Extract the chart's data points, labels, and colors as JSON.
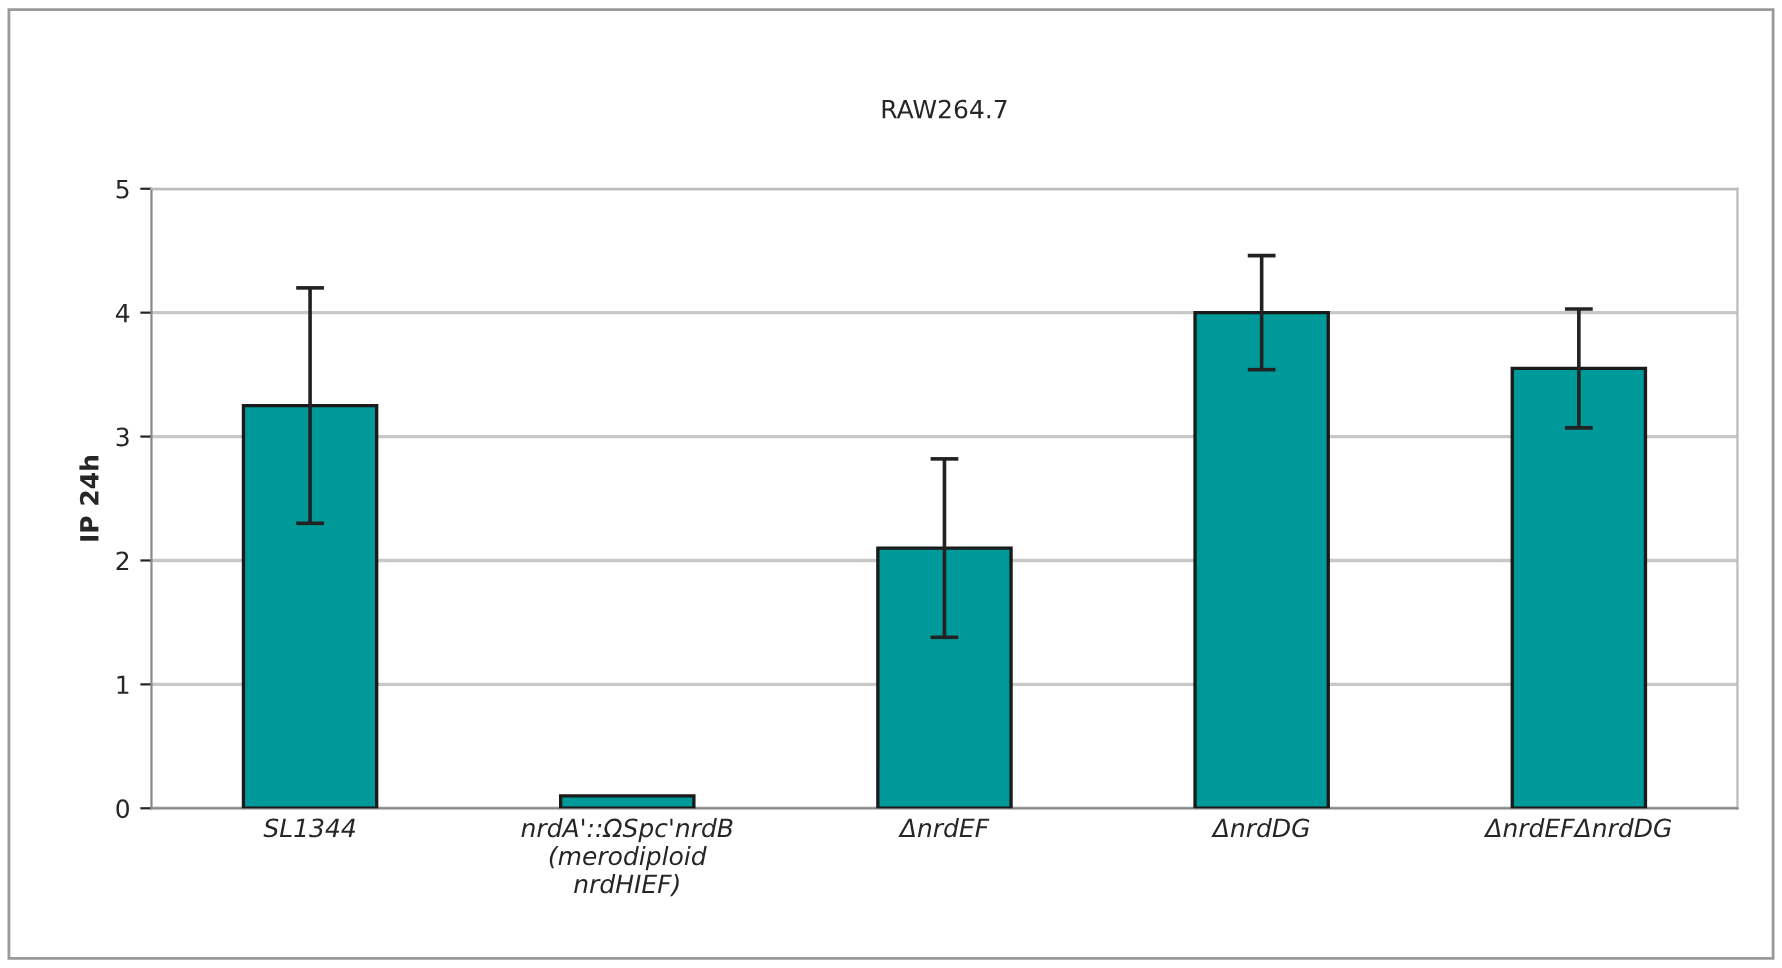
{
  "chart_data": {
    "type": "bar",
    "title": "RAW264.7",
    "ylabel": "IP 24h",
    "categories": [
      "SL1344",
      "nrdA'::ΩSpc'nrdB\n(merodiploid\nnrdHIEF)",
      "ΔnrdEF",
      "ΔnrdDG",
      "ΔnrdEFΔnrdDG"
    ],
    "values": [
      3.25,
      0.1,
      2.1,
      4.0,
      3.55
    ],
    "errors": [
      0.95,
      null,
      0.72,
      0.46,
      0.48
    ],
    "color": "#009999",
    "ylim": [
      0,
      5
    ],
    "yticks": [
      0,
      1,
      2,
      3,
      4,
      5
    ],
    "grid": "y"
  }
}
